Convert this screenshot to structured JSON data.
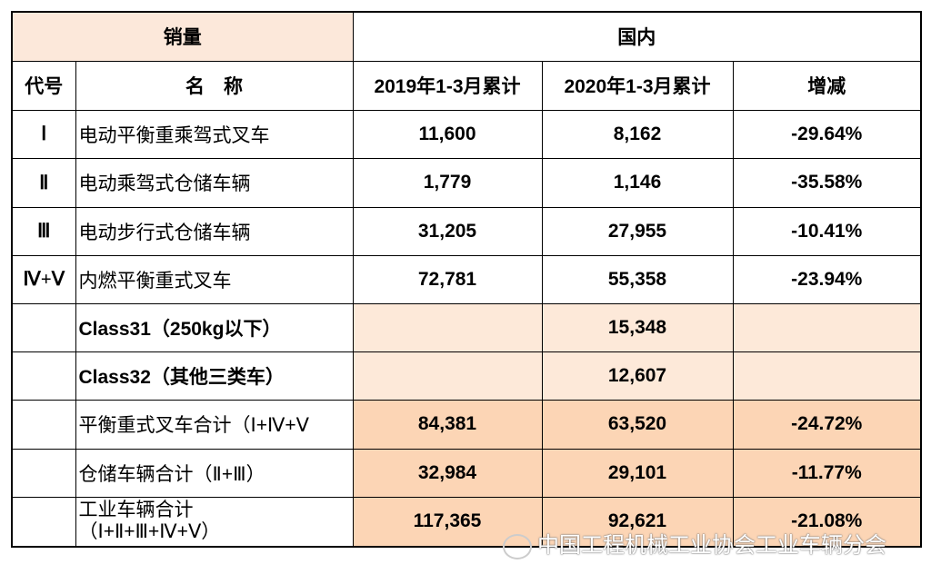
{
  "header": {
    "group_left": "销量",
    "group_right": "国内",
    "col_code": "代号",
    "col_name": "名　称",
    "col_2019": "2019年1-3月累计",
    "col_2020": "2020年1-3月累计",
    "col_change": "增减"
  },
  "rows": [
    {
      "code": "Ⅰ",
      "name": "电动平衡重乘驾式叉车",
      "v2019": "11,600",
      "v2020": "8,162",
      "change": "-29.64%"
    },
    {
      "code": "Ⅱ",
      "name": "电动乘驾式仓储车辆",
      "v2019": "1,779",
      "v2020": "1,146",
      "change": "-35.58%"
    },
    {
      "code": "Ⅲ",
      "name": "电动步行式仓储车辆",
      "v2019": "31,205",
      "v2020": "27,955",
      "change": "-10.41%"
    },
    {
      "code": "Ⅳ+Ⅴ",
      "name": "内燃平衡重式叉车",
      "v2019": "72,781",
      "v2020": "55,358",
      "change": "-23.94%"
    },
    {
      "code": "",
      "name": "Class31（250kg以下）",
      "v2019": "",
      "v2020": "15,348",
      "change": ""
    },
    {
      "code": "",
      "name": "Class32（其他三类车）",
      "v2019": "",
      "v2020": "12,607",
      "change": ""
    },
    {
      "code": "",
      "name": "平衡重式叉车合计（Ⅰ+Ⅳ+Ⅴ",
      "v2019": "84,381",
      "v2020": "63,520",
      "change": "-24.72%"
    },
    {
      "code": "",
      "name": "仓储车辆合计（Ⅱ+Ⅲ）",
      "v2019": "32,984",
      "v2020": "29,101",
      "change": "-11.77%"
    },
    {
      "code": "",
      "name": "工业车辆合计",
      "name2": "（Ⅰ+Ⅱ+Ⅲ+Ⅳ+Ⅴ）",
      "v2019": "117,365",
      "v2020": "92,621",
      "change": "-21.08%"
    }
  ],
  "watermark": "中国工程机械工业协会工业车辆分会",
  "colors": {
    "header_fill": "#fce8da",
    "light_fill": "#fde9d9",
    "total_fill": "#fcd5b5"
  }
}
